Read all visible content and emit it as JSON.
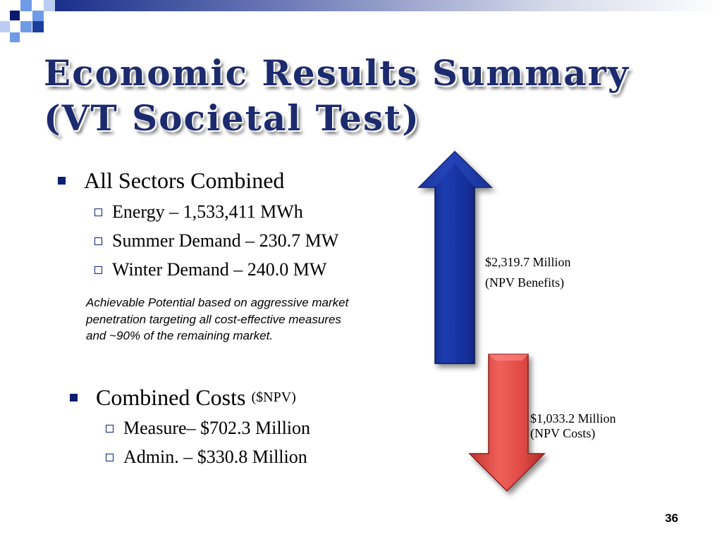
{
  "title": {
    "line1": "Economic Results Summary",
    "line2": "(VT Societal Test)"
  },
  "sectors": {
    "heading": "All Sectors Combined",
    "items": [
      "Energy – 1,533,411 MWh",
      "Summer Demand – 230.7 MW",
      "Winter Demand – 240.0 MW"
    ]
  },
  "note": "Achievable Potential based on aggressive market penetration targeting all cost-effective measures and ~90% of the remaining market.",
  "costs": {
    "heading": "Combined Costs",
    "heading_suffix": "($NPV)",
    "items": [
      "Measure– $702.3 Million",
      "Admin. – $330.8 Million"
    ]
  },
  "benefits_label": {
    "line1": "$2,319.7 Million",
    "line2": "(NPV Benefits)"
  },
  "costs_label": {
    "line1": "$1,033.2 Million",
    "line2": "(NPV Costs)"
  },
  "page_number": "36",
  "colors": {
    "title": "#1c2a6e",
    "bullet": "#0b1f6e",
    "benefit_arrow": "#0f2890",
    "cost_arrow": "#e04a45"
  },
  "icons": {
    "benefit_arrow": "up-arrow-icon",
    "cost_arrow": "down-arrow-icon"
  }
}
